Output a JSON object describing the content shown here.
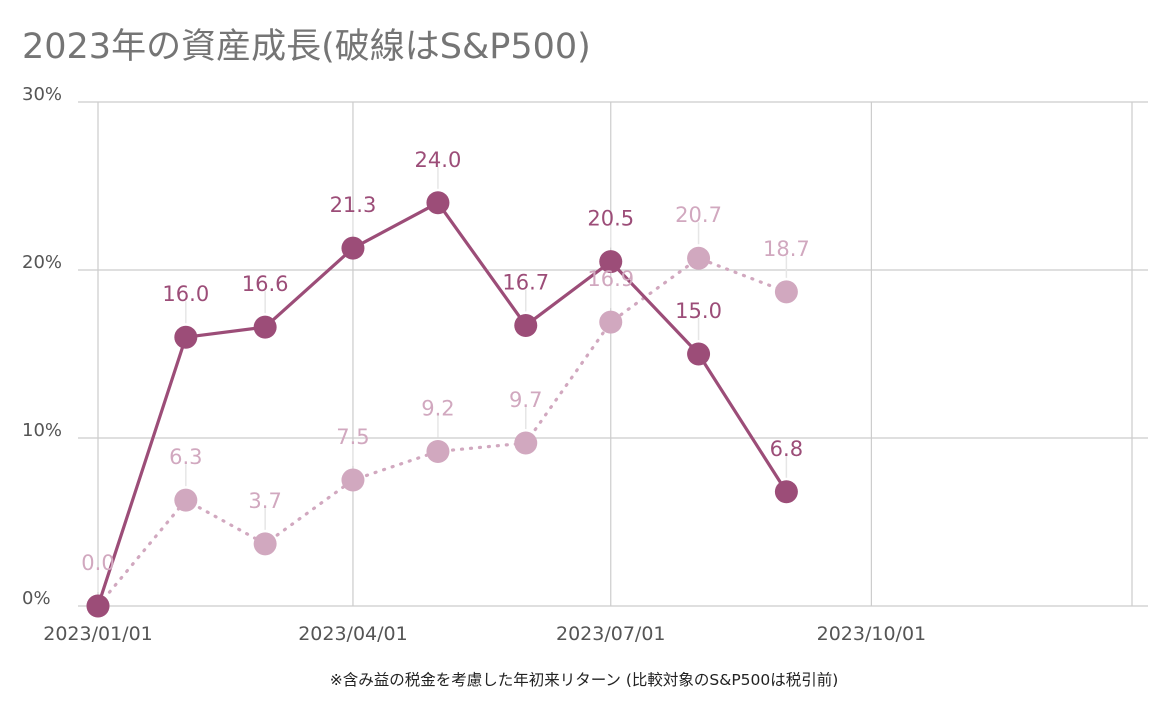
{
  "title": "2023年の資産成長(破線はS&P500)",
  "footnote": "※含み益の税金を考慮した年初来リターン (比較対象のS&P500は税引前)",
  "chart_data": {
    "type": "line",
    "title": "2023年の資産成長(破線はS&P500)",
    "xlabel": "",
    "ylabel": "",
    "x_ticks": [
      "2023/01/01",
      "2023/04/01",
      "2023/07/01",
      "2023/10/01"
    ],
    "y_ticks": [
      "0%",
      "10%",
      "20%",
      "30%"
    ],
    "ylim": [
      0,
      30
    ],
    "xlim": [
      "2023/01/01",
      "2024/01/01"
    ],
    "grid": true,
    "series": [
      {
        "style": "solid",
        "color": "#9c4d78",
        "points": [
          {
            "x": "2023/01/01",
            "y": 0.0,
            "label": ""
          },
          {
            "x": "2023/02/01",
            "y": 16.0,
            "label": "16.0"
          },
          {
            "x": "2023/03/01",
            "y": 16.6,
            "label": "16.6"
          },
          {
            "x": "2023/04/01",
            "y": 21.3,
            "label": "21.3"
          },
          {
            "x": "2023/05/01",
            "y": 24.0,
            "label": "24.0"
          },
          {
            "x": "2023/06/01",
            "y": 16.7,
            "label": "16.7"
          },
          {
            "x": "2023/07/01",
            "y": 20.5,
            "label": "20.5"
          },
          {
            "x": "2023/08/01",
            "y": 15.0,
            "label": "15.0"
          },
          {
            "x": "2023/09/01",
            "y": 6.8,
            "label": "6.8"
          }
        ]
      },
      {
        "style": "dotted",
        "color": "#d1a8bf",
        "points": [
          {
            "x": "2023/01/01",
            "y": 0.0,
            "label": "0.0"
          },
          {
            "x": "2023/02/01",
            "y": 6.3,
            "label": "6.3"
          },
          {
            "x": "2023/03/01",
            "y": 3.7,
            "label": "3.7"
          },
          {
            "x": "2023/04/01",
            "y": 7.5,
            "label": "7.5"
          },
          {
            "x": "2023/05/01",
            "y": 9.2,
            "label": "9.2"
          },
          {
            "x": "2023/06/01",
            "y": 9.7,
            "label": "9.7"
          },
          {
            "x": "2023/07/01",
            "y": 16.9,
            "label": "16.9"
          },
          {
            "x": "2023/08/01",
            "y": 20.7,
            "label": "20.7"
          },
          {
            "x": "2023/09/01",
            "y": 18.7,
            "label": "18.7"
          }
        ]
      }
    ]
  }
}
